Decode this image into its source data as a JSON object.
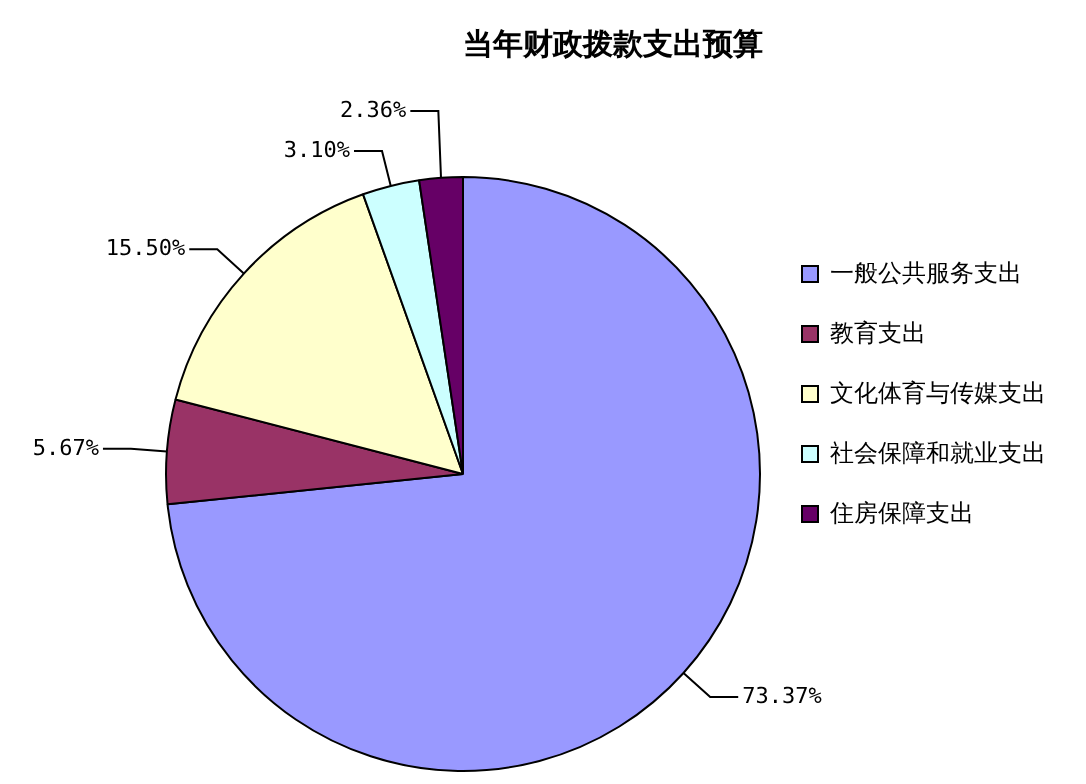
{
  "chart_data": {
    "type": "pie",
    "title": "当年财政拨款支出预算",
    "categories": [
      "一般公共服务支出",
      "教育支出",
      "文化体育与传媒支出",
      "社会保障和就业支出",
      "住房保障支出"
    ],
    "values": [
      73.37,
      5.67,
      15.5,
      3.1,
      2.36
    ],
    "value_labels": [
      "73.37%",
      "5.67%",
      "15.50%",
      "3.10%",
      "2.36%"
    ],
    "colors": [
      "#9999ff",
      "#993366",
      "#ffffcc",
      "#ccffff",
      "#660066"
    ],
    "legend": "right"
  }
}
